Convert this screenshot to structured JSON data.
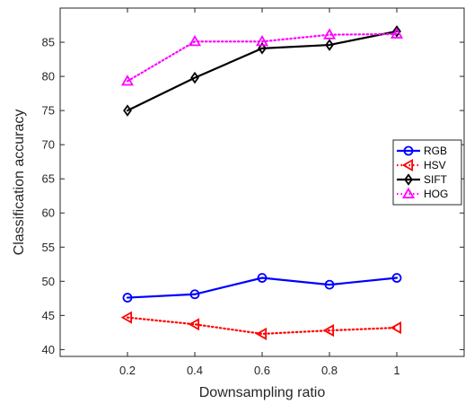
{
  "chart_data": {
    "type": "line",
    "title": "",
    "xlabel": "Downsampling ratio",
    "ylabel": "Classification accuracy",
    "x": [
      0.2,
      0.4,
      0.6,
      0.8,
      1
    ],
    "xlim": [
      0,
      1.2
    ],
    "ylim": [
      39,
      90
    ],
    "xticks": [
      0.2,
      0.4,
      0.6,
      0.8,
      1
    ],
    "xtick_labels": [
      "0.2",
      "0.4",
      "0.6",
      "0.8",
      "1"
    ],
    "yticks": [
      40,
      45,
      50,
      55,
      60,
      65,
      70,
      75,
      80,
      85
    ],
    "ytick_labels": [
      "40",
      "45",
      "50",
      "55",
      "60",
      "65",
      "70",
      "75",
      "80",
      "85"
    ],
    "grid": false,
    "legend_position": "right",
    "series": [
      {
        "name": "RGB",
        "values": [
          47.6,
          48.1,
          50.5,
          49.5,
          50.5
        ],
        "color": "#0000ff",
        "line": "solid",
        "marker": "circle"
      },
      {
        "name": "HSV",
        "values": [
          44.7,
          43.7,
          42.3,
          42.8,
          43.2
        ],
        "color": "#ff0000",
        "line": "dotted",
        "marker": "triangle-left"
      },
      {
        "name": "SIFT",
        "values": [
          75.0,
          79.8,
          84.1,
          84.6,
          86.6
        ],
        "color": "#000000",
        "line": "solid",
        "marker": "diamond"
      },
      {
        "name": "HOG",
        "values": [
          79.3,
          85.1,
          85.1,
          86.1,
          86.2
        ],
        "color": "#ff00ff",
        "line": "dotted",
        "marker": "triangle-up"
      }
    ]
  }
}
